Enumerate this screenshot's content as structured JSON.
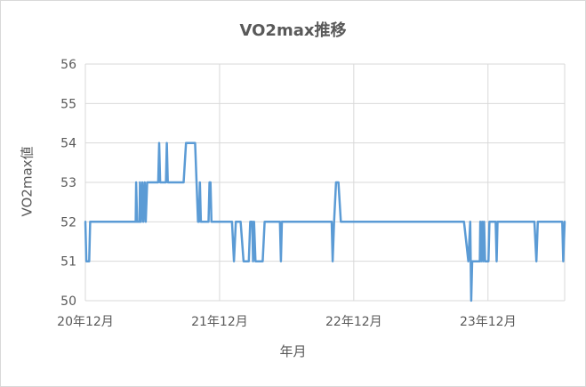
{
  "chart_data": {
    "type": "line",
    "title": "VO2max推移",
    "xlabel": "年月",
    "ylabel": "VO2max値",
    "ylim": [
      50,
      56
    ],
    "yticks": [
      "50",
      "51",
      "52",
      "53",
      "54",
      "55",
      "56"
    ],
    "xlim": [
      0,
      1
    ],
    "xticks": [
      {
        "label": "20年12月",
        "pos": 0
      },
      {
        "label": "21年12月",
        "pos": 0.28
      },
      {
        "label": "22年12月",
        "pos": 0.56
      },
      {
        "label": "23年12月",
        "pos": 0.84
      }
    ],
    "grid": true,
    "legend": "none",
    "series": [
      {
        "color": "#5b9bd5",
        "points": [
          [
            0.0,
            52
          ],
          [
            0.002,
            51
          ],
          [
            0.008,
            51
          ],
          [
            0.01,
            52
          ],
          [
            0.105,
            52
          ],
          [
            0.106,
            53
          ],
          [
            0.108,
            52
          ],
          [
            0.113,
            52
          ],
          [
            0.114,
            53
          ],
          [
            0.116,
            52
          ],
          [
            0.119,
            53
          ],
          [
            0.121,
            52
          ],
          [
            0.124,
            53
          ],
          [
            0.126,
            52
          ],
          [
            0.129,
            53
          ],
          [
            0.152,
            53
          ],
          [
            0.154,
            54
          ],
          [
            0.156,
            53
          ],
          [
            0.168,
            53
          ],
          [
            0.17,
            54
          ],
          [
            0.172,
            53
          ],
          [
            0.205,
            53
          ],
          [
            0.21,
            54
          ],
          [
            0.229,
            54
          ],
          [
            0.235,
            52
          ],
          [
            0.237,
            52
          ],
          [
            0.239,
            53
          ],
          [
            0.241,
            52
          ],
          [
            0.257,
            52
          ],
          [
            0.259,
            53
          ],
          [
            0.261,
            53
          ],
          [
            0.263,
            52
          ],
          [
            0.306,
            52
          ],
          [
            0.31,
            51
          ],
          [
            0.314,
            52
          ],
          [
            0.324,
            52
          ],
          [
            0.33,
            51
          ],
          [
            0.341,
            51
          ],
          [
            0.344,
            52
          ],
          [
            0.348,
            52
          ],
          [
            0.35,
            51
          ],
          [
            0.352,
            52
          ],
          [
            0.355,
            51
          ],
          [
            0.37,
            51
          ],
          [
            0.374,
            52
          ],
          [
            0.406,
            52
          ],
          [
            0.408,
            51
          ],
          [
            0.41,
            52
          ],
          [
            0.514,
            52
          ],
          [
            0.516,
            51
          ],
          [
            0.519,
            52
          ],
          [
            0.523,
            53
          ],
          [
            0.528,
            53
          ],
          [
            0.533,
            52
          ],
          [
            0.79,
            52
          ],
          [
            0.799,
            51
          ],
          [
            0.803,
            52
          ],
          [
            0.805,
            50
          ],
          [
            0.807,
            51
          ],
          [
            0.823,
            51
          ],
          [
            0.824,
            52
          ],
          [
            0.826,
            51
          ],
          [
            0.828,
            52
          ],
          [
            0.83,
            51
          ],
          [
            0.832,
            52
          ],
          [
            0.834,
            51
          ],
          [
            0.841,
            51
          ],
          [
            0.843,
            52
          ],
          [
            0.856,
            52
          ],
          [
            0.858,
            51
          ],
          [
            0.86,
            52
          ],
          [
            0.937,
            52
          ],
          [
            0.941,
            51
          ],
          [
            0.944,
            52
          ],
          [
            0.995,
            52
          ],
          [
            0.997,
            51
          ],
          [
            1.0,
            52
          ]
        ]
      }
    ]
  }
}
